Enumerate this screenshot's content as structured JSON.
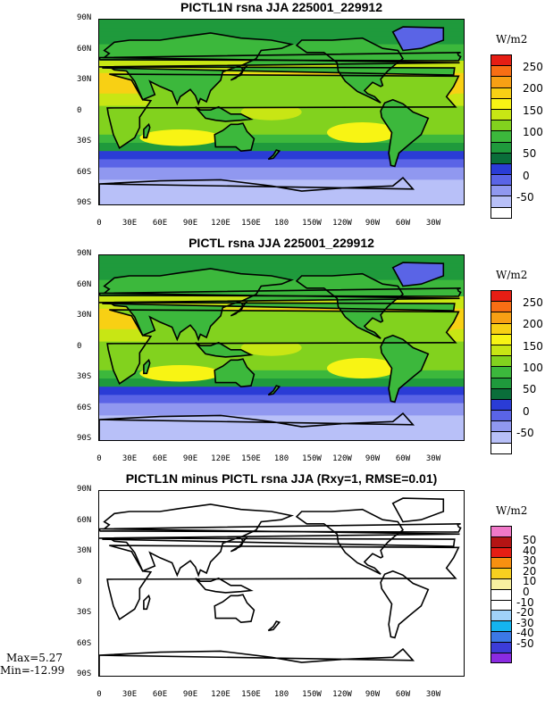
{
  "panels": [
    {
      "title": "PICTL1N rsna JJA 225001_229912",
      "type": "filled",
      "units": "W/m2",
      "colorbar": {
        "colors": [
          "#ffffff",
          "#b8c0f8",
          "#9098f0",
          "#5a64e6",
          "#2a3cd6",
          "#0a6e3a",
          "#1f9a3c",
          "#3cb83c",
          "#82d21e",
          "#c8e614",
          "#f8f414",
          "#f8d014",
          "#f8a014",
          "#f86e14",
          "#e61e14"
        ],
        "labels": [
          "250",
          "200",
          "150",
          "100",
          "50",
          "0",
          "-50"
        ]
      }
    },
    {
      "title": "PICTL rsna JJA 225001_229912",
      "type": "filled",
      "units": "W/m2",
      "colorbar": {
        "colors": [
          "#ffffff",
          "#b8c0f8",
          "#9098f0",
          "#5a64e6",
          "#2a3cd6",
          "#0a6e3a",
          "#1f9a3c",
          "#3cb83c",
          "#82d21e",
          "#c8e614",
          "#f8f414",
          "#f8d014",
          "#f8a014",
          "#f86e14",
          "#e61e14"
        ],
        "labels": [
          "250",
          "200",
          "150",
          "100",
          "50",
          "0",
          "-50"
        ]
      }
    },
    {
      "title": "PICTL1N minus PICTL rsna JJA (Rxy=1, RMSE=0.01)",
      "type": "diff",
      "units": "W/m2",
      "colorbar": {
        "colors": [
          "#8a2be2",
          "#3c3cd8",
          "#3c78e6",
          "#14b4f0",
          "#a0d2f8",
          "#ffffff",
          "#ffffff",
          "#f8f0a0",
          "#f8d020",
          "#f89010",
          "#e61e14",
          "#b41414",
          "#f078c8"
        ],
        "labels": [
          "50",
          "40",
          "30",
          "20",
          "10",
          "0",
          "-10",
          "-20",
          "-30",
          "-40",
          "-50"
        ]
      },
      "stats": {
        "max": "Max=5.27",
        "min": "Min=-12.99"
      }
    }
  ],
  "lat_labels": [
    "90N",
    "60N",
    "30N",
    "0",
    "30S",
    "60S",
    "90S"
  ],
  "lon_labels": [
    "0",
    "30E",
    "60E",
    "90E",
    "120E",
    "150E",
    "180",
    "150W",
    "120W",
    "90W",
    "60W",
    "30W"
  ]
}
